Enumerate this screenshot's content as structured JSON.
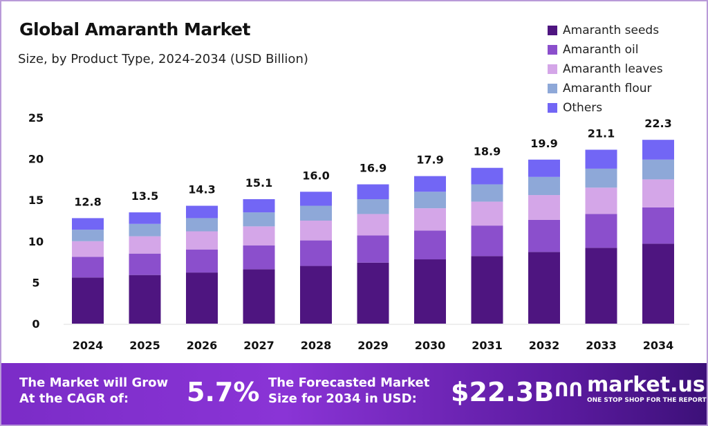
{
  "chart_data": {
    "type": "bar",
    "stacked": true,
    "title": "Global Amaranth Market",
    "subtitle": "Size, by Product Type, 2024-2034 (USD Billion)",
    "categories": [
      "2024",
      "2025",
      "2026",
      "2027",
      "2028",
      "2029",
      "2030",
      "2031",
      "2032",
      "2033",
      "2034"
    ],
    "totals": [
      "12.8",
      "13.5",
      "14.3",
      "15.1",
      "16.0",
      "16.9",
      "17.9",
      "18.9",
      "19.9",
      "21.1",
      "22.3"
    ],
    "series": [
      {
        "name": "Amaranth seeds",
        "color": "#4e1580",
        "values": [
          5.6,
          5.9,
          6.2,
          6.6,
          7.0,
          7.4,
          7.8,
          8.2,
          8.7,
          9.2,
          9.7
        ]
      },
      {
        "name": "Amaranth oil",
        "color": "#8b4fcc",
        "values": [
          2.5,
          2.6,
          2.8,
          2.9,
          3.1,
          3.3,
          3.5,
          3.7,
          3.9,
          4.1,
          4.4
        ]
      },
      {
        "name": "Amaranth leaves",
        "color": "#d4a6e8",
        "values": [
          1.9,
          2.1,
          2.2,
          2.3,
          2.4,
          2.6,
          2.7,
          2.9,
          3.0,
          3.2,
          3.4
        ]
      },
      {
        "name": "Amaranth flour",
        "color": "#8ea8d8",
        "values": [
          1.4,
          1.5,
          1.6,
          1.7,
          1.8,
          1.8,
          2.0,
          2.1,
          2.2,
          2.3,
          2.4
        ]
      },
      {
        "name": "Others",
        "color": "#7266f5",
        "values": [
          1.4,
          1.4,
          1.5,
          1.6,
          1.7,
          1.8,
          1.9,
          2.0,
          2.1,
          2.3,
          2.4
        ]
      }
    ],
    "yticks": [
      "0",
      "5",
      "10",
      "15",
      "20",
      "25"
    ],
    "ylim": [
      0,
      25
    ],
    "xlabel": "",
    "ylabel": "",
    "grid": false,
    "legend": "top-right"
  },
  "footer": {
    "cagr_label_1": "The Market will Grow",
    "cagr_label_2": "At the CAGR of:",
    "cagr_value": "5.7%",
    "forecast_label_1": "The Forecasted Market",
    "forecast_label_2": "Size for 2034 in USD:",
    "forecast_value": "$22.3B",
    "logo_name": "market.us",
    "logo_tagline": "ONE STOP SHOP FOR THE REPORTS"
  }
}
